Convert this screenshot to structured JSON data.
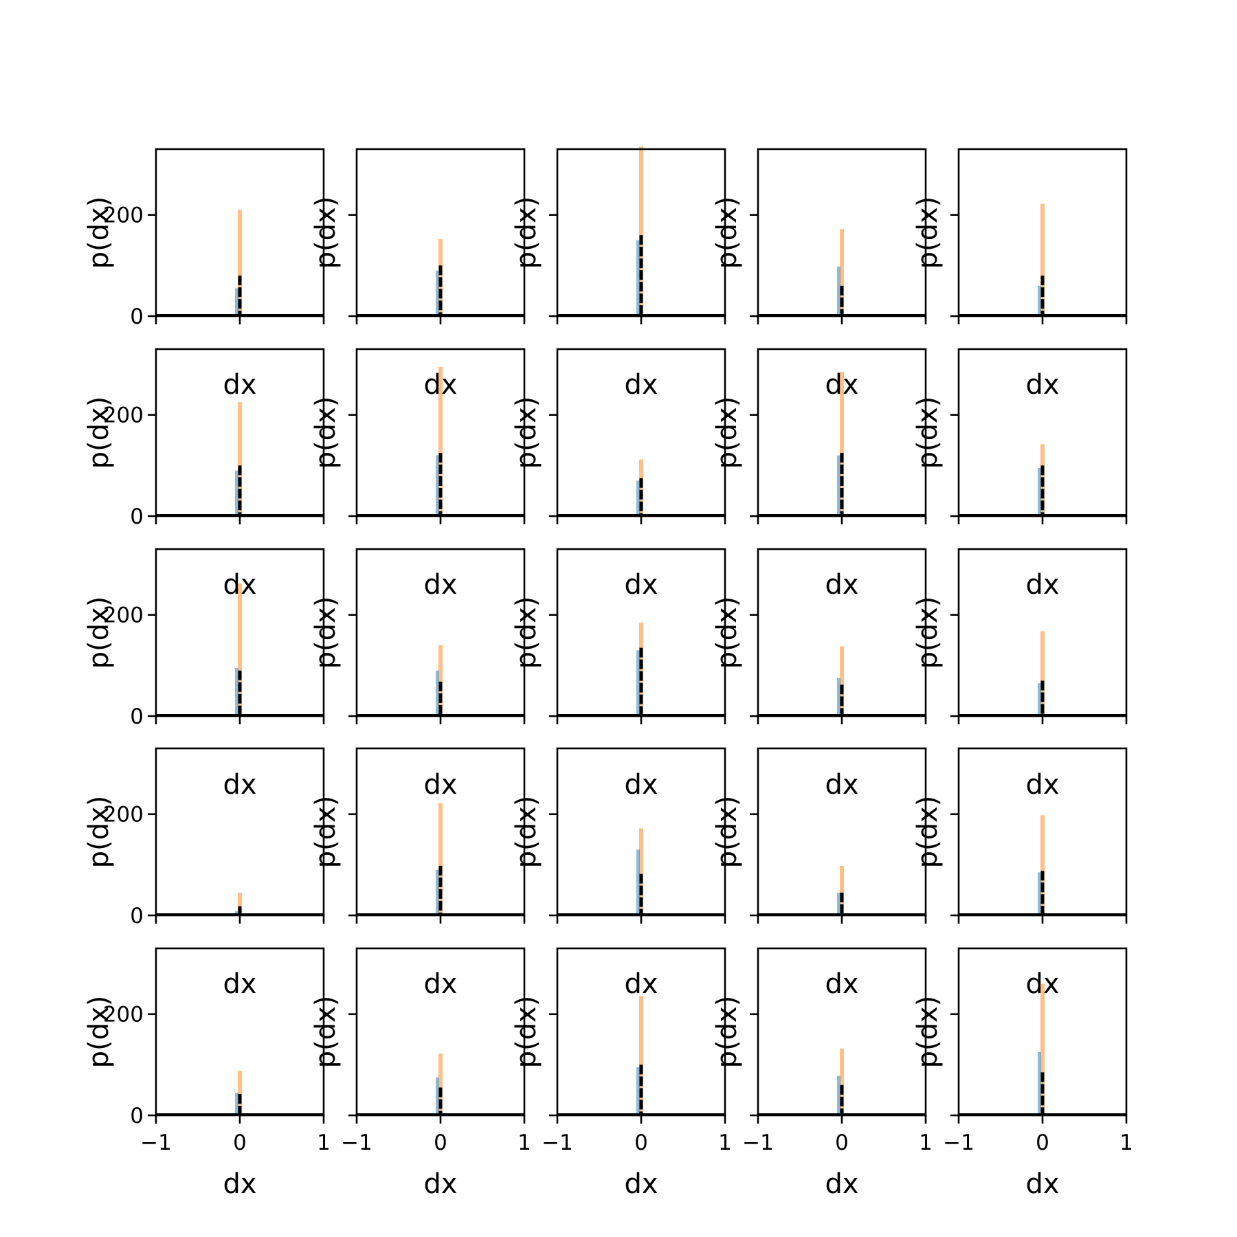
{
  "chart_data": {
    "type": "histogram-grid",
    "rows": 5,
    "cols": 5,
    "xlabel": "dx",
    "ylabel": "p(dx)",
    "xlim": [
      -1,
      1
    ],
    "ylim": [
      0,
      330
    ],
    "xticks": [
      -1,
      0,
      1
    ],
    "xtick_labels": [
      "−1",
      "0",
      "1"
    ],
    "yticks": [
      0,
      200
    ],
    "ytick_labels": [
      "0",
      "200"
    ],
    "colors": {
      "blue": "#1f77b4",
      "orange": "#ff7f0e",
      "black": "#000000",
      "frame": "#000000"
    },
    "panels": [
      {
        "orange": 210,
        "blue": 55,
        "black": 80
      },
      {
        "orange": 152,
        "blue": 90,
        "black": 100
      },
      {
        "orange": 335,
        "blue": 150,
        "black": 160
      },
      {
        "orange": 172,
        "blue": 98,
        "black": 60
      },
      {
        "orange": 222,
        "blue": 60,
        "black": 80
      },
      {
        "orange": 225,
        "blue": 90,
        "black": 100
      },
      {
        "orange": 295,
        "blue": 120,
        "black": 125
      },
      {
        "orange": 112,
        "blue": 70,
        "black": 75
      },
      {
        "orange": 285,
        "blue": 120,
        "black": 125
      },
      {
        "orange": 142,
        "blue": 95,
        "black": 100
      },
      {
        "orange": 262,
        "blue": 95,
        "black": 90
      },
      {
        "orange": 140,
        "blue": 90,
        "black": 68
      },
      {
        "orange": 185,
        "blue": 130,
        "black": 135
      },
      {
        "orange": 138,
        "blue": 75,
        "black": 62
      },
      {
        "orange": 168,
        "blue": 65,
        "black": 70
      },
      {
        "orange": 45,
        "blue": 8,
        "black": 18
      },
      {
        "orange": 222,
        "blue": 90,
        "black": 98
      },
      {
        "orange": 172,
        "blue": 130,
        "black": 82
      },
      {
        "orange": 98,
        "blue": 45,
        "black": 45
      },
      {
        "orange": 198,
        "blue": 85,
        "black": 88
      },
      {
        "orange": 88,
        "blue": 45,
        "black": 42
      },
      {
        "orange": 122,
        "blue": 75,
        "black": 55
      },
      {
        "orange": 236,
        "blue": 95,
        "black": 100
      },
      {
        "orange": 132,
        "blue": 78,
        "black": 60
      },
      {
        "orange": 260,
        "blue": 125,
        "black": 85
      }
    ]
  }
}
